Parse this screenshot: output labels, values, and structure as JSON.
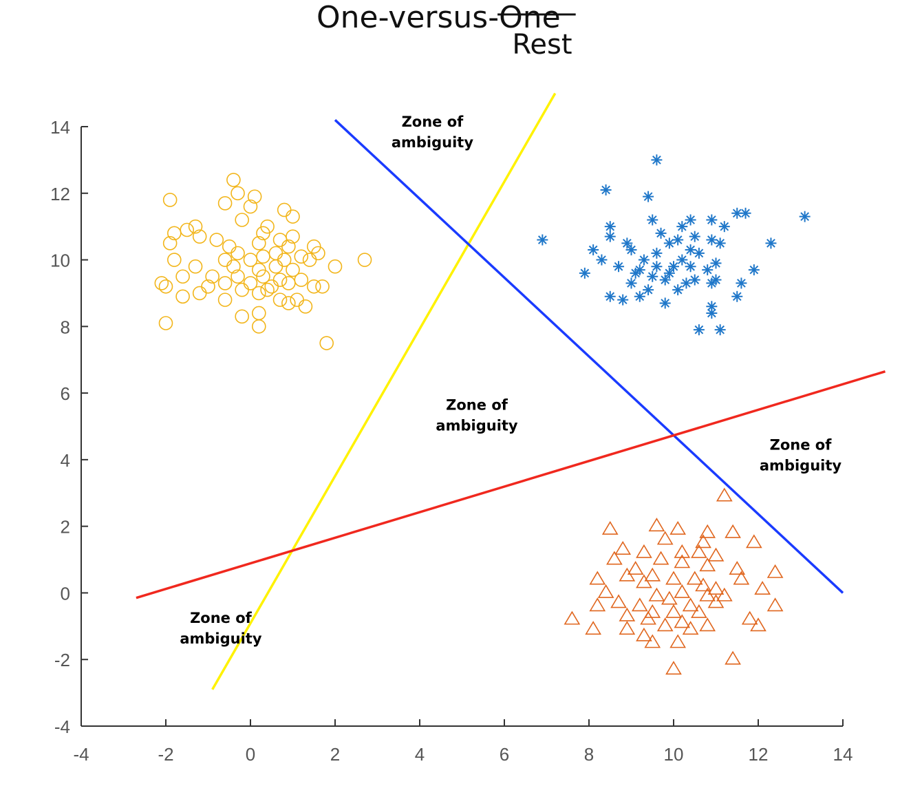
{
  "chart_data": {
    "type": "scatter",
    "title": {
      "prefix": "One-versus-",
      "struck": "One",
      "replacement": "Rest"
    },
    "xlabel": "",
    "ylabel": "",
    "xlim": [
      -4,
      14
    ],
    "ylim": [
      -4,
      14
    ],
    "x_ticks": [
      -4,
      -2,
      0,
      2,
      4,
      6,
      8,
      10,
      12,
      14
    ],
    "y_ticks": [
      -4,
      -2,
      0,
      2,
      4,
      6,
      8,
      10,
      12,
      14
    ],
    "grid": false,
    "colors": {
      "circles": "#F2B51A",
      "stars": "#1F77C9",
      "triangles": "#E0661E",
      "line_yellow": "#FFF200",
      "line_blue": "#1A3BFF",
      "line_red": "#F0281E",
      "axis": "#333333"
    },
    "series": [
      {
        "marker": "circle",
        "color": "#F2B51A",
        "points": [
          [
            -0.4,
            12.4
          ],
          [
            -0.3,
            12.0
          ],
          [
            0.1,
            11.9
          ],
          [
            -1.9,
            11.8
          ],
          [
            -0.6,
            11.7
          ],
          [
            0.0,
            11.6
          ],
          [
            0.8,
            11.5
          ],
          [
            1.0,
            11.3
          ],
          [
            -0.2,
            11.2
          ],
          [
            0.4,
            11.0
          ],
          [
            -1.3,
            11.0
          ],
          [
            -1.5,
            10.9
          ],
          [
            -1.8,
            10.8
          ],
          [
            -1.2,
            10.7
          ],
          [
            0.3,
            10.8
          ],
          [
            0.7,
            10.6
          ],
          [
            1.0,
            10.7
          ],
          [
            -0.8,
            10.6
          ],
          [
            -1.9,
            10.5
          ],
          [
            -0.5,
            10.4
          ],
          [
            0.2,
            10.5
          ],
          [
            0.9,
            10.4
          ],
          [
            1.5,
            10.4
          ],
          [
            -0.3,
            10.2
          ],
          [
            0.3,
            10.1
          ],
          [
            0.6,
            10.2
          ],
          [
            1.2,
            10.1
          ],
          [
            1.6,
            10.2
          ],
          [
            -1.8,
            10.0
          ],
          [
            -0.6,
            10.0
          ],
          [
            0.0,
            10.0
          ],
          [
            0.8,
            10.0
          ],
          [
            1.4,
            10.0
          ],
          [
            2.7,
            10.0
          ],
          [
            -1.3,
            9.8
          ],
          [
            -0.4,
            9.8
          ],
          [
            0.2,
            9.7
          ],
          [
            0.6,
            9.8
          ],
          [
            1.0,
            9.7
          ],
          [
            2.0,
            9.8
          ],
          [
            -1.6,
            9.5
          ],
          [
            -0.9,
            9.5
          ],
          [
            -0.3,
            9.5
          ],
          [
            0.3,
            9.5
          ],
          [
            0.7,
            9.4
          ],
          [
            1.2,
            9.4
          ],
          [
            -2.1,
            9.3
          ],
          [
            -0.6,
            9.3
          ],
          [
            0.0,
            9.3
          ],
          [
            0.5,
            9.2
          ],
          [
            0.9,
            9.3
          ],
          [
            1.5,
            9.2
          ],
          [
            -2.0,
            9.2
          ],
          [
            -1.0,
            9.2
          ],
          [
            -0.2,
            9.1
          ],
          [
            0.4,
            9.1
          ],
          [
            1.7,
            9.2
          ],
          [
            -1.2,
            9.0
          ],
          [
            -1.6,
            8.9
          ],
          [
            -0.6,
            8.8
          ],
          [
            0.2,
            9.0
          ],
          [
            0.7,
            8.8
          ],
          [
            1.1,
            8.8
          ],
          [
            0.9,
            8.7
          ],
          [
            1.3,
            8.6
          ],
          [
            -0.2,
            8.3
          ],
          [
            0.2,
            8.4
          ],
          [
            -2.0,
            8.1
          ],
          [
            0.2,
            8.0
          ],
          [
            1.8,
            7.5
          ]
        ]
      },
      {
        "marker": "star",
        "color": "#1F77C9",
        "points": [
          [
            9.6,
            13.0
          ],
          [
            8.4,
            12.1
          ],
          [
            9.4,
            11.9
          ],
          [
            11.5,
            11.4
          ],
          [
            11.7,
            11.4
          ],
          [
            13.1,
            11.3
          ],
          [
            9.5,
            11.2
          ],
          [
            10.4,
            11.2
          ],
          [
            10.9,
            11.2
          ],
          [
            8.5,
            11.0
          ],
          [
            10.2,
            11.0
          ],
          [
            11.2,
            11.0
          ],
          [
            8.5,
            10.7
          ],
          [
            9.7,
            10.8
          ],
          [
            10.5,
            10.7
          ],
          [
            10.9,
            10.6
          ],
          [
            10.1,
            10.6
          ],
          [
            6.9,
            10.6
          ],
          [
            8.9,
            10.5
          ],
          [
            9.9,
            10.5
          ],
          [
            11.1,
            10.5
          ],
          [
            12.3,
            10.5
          ],
          [
            8.1,
            10.3
          ],
          [
            9.0,
            10.3
          ],
          [
            10.4,
            10.3
          ],
          [
            10.6,
            10.2
          ],
          [
            9.6,
            10.2
          ],
          [
            9.3,
            10.0
          ],
          [
            10.2,
            10.0
          ],
          [
            11.0,
            9.9
          ],
          [
            8.7,
            9.8
          ],
          [
            9.6,
            9.8
          ],
          [
            10.0,
            9.8
          ],
          [
            10.8,
            9.7
          ],
          [
            11.9,
            9.7
          ],
          [
            9.1,
            9.6
          ],
          [
            9.9,
            9.6
          ],
          [
            7.9,
            9.6
          ],
          [
            9.5,
            9.5
          ],
          [
            9.8,
            9.4
          ],
          [
            10.5,
            9.4
          ],
          [
            11.0,
            9.4
          ],
          [
            9.0,
            9.3
          ],
          [
            10.3,
            9.3
          ],
          [
            10.9,
            9.3
          ],
          [
            11.6,
            9.3
          ],
          [
            9.4,
            9.1
          ],
          [
            10.1,
            9.1
          ],
          [
            9.2,
            8.9
          ],
          [
            8.5,
            8.9
          ],
          [
            8.8,
            8.8
          ],
          [
            11.5,
            8.9
          ],
          [
            9.8,
            8.7
          ],
          [
            10.9,
            8.6
          ],
          [
            10.9,
            8.4
          ],
          [
            10.6,
            7.9
          ],
          [
            11.1,
            7.9
          ],
          [
            10.4,
            9.8
          ],
          [
            8.3,
            10.0
          ],
          [
            9.2,
            9.7
          ]
        ]
      },
      {
        "marker": "triangle",
        "color": "#E0661E",
        "points": [
          [
            11.2,
            2.9
          ],
          [
            9.6,
            2.0
          ],
          [
            10.1,
            1.9
          ],
          [
            8.5,
            1.9
          ],
          [
            10.8,
            1.8
          ],
          [
            11.4,
            1.8
          ],
          [
            9.8,
            1.6
          ],
          [
            10.7,
            1.5
          ],
          [
            11.9,
            1.5
          ],
          [
            8.8,
            1.3
          ],
          [
            9.3,
            1.2
          ],
          [
            10.2,
            1.2
          ],
          [
            10.6,
            1.2
          ],
          [
            11.0,
            1.1
          ],
          [
            8.6,
            1.0
          ],
          [
            9.7,
            1.0
          ],
          [
            10.2,
            0.9
          ],
          [
            10.8,
            0.8
          ],
          [
            9.1,
            0.7
          ],
          [
            11.5,
            0.7
          ],
          [
            12.4,
            0.6
          ],
          [
            8.9,
            0.5
          ],
          [
            9.5,
            0.5
          ],
          [
            10.0,
            0.4
          ],
          [
            10.5,
            0.4
          ],
          [
            11.6,
            0.4
          ],
          [
            8.2,
            0.4
          ],
          [
            9.3,
            0.3
          ],
          [
            10.7,
            0.2
          ],
          [
            11.0,
            0.1
          ],
          [
            12.1,
            0.1
          ],
          [
            8.4,
            0.0
          ],
          [
            9.6,
            -0.1
          ],
          [
            10.2,
            0.0
          ],
          [
            10.8,
            -0.1
          ],
          [
            11.2,
            -0.1
          ],
          [
            9.9,
            -0.2
          ],
          [
            8.7,
            -0.3
          ],
          [
            11.0,
            -0.3
          ],
          [
            8.2,
            -0.4
          ],
          [
            9.2,
            -0.4
          ],
          [
            10.4,
            -0.4
          ],
          [
            12.4,
            -0.4
          ],
          [
            9.5,
            -0.6
          ],
          [
            10.0,
            -0.6
          ],
          [
            10.6,
            -0.6
          ],
          [
            8.9,
            -0.7
          ],
          [
            7.6,
            -0.8
          ],
          [
            9.4,
            -0.8
          ],
          [
            11.8,
            -0.8
          ],
          [
            10.2,
            -0.9
          ],
          [
            10.8,
            -1.0
          ],
          [
            8.9,
            -1.1
          ],
          [
            9.8,
            -1.0
          ],
          [
            12.0,
            -1.0
          ],
          [
            8.1,
            -1.1
          ],
          [
            10.4,
            -1.1
          ],
          [
            9.3,
            -1.3
          ],
          [
            9.5,
            -1.5
          ],
          [
            10.1,
            -1.5
          ],
          [
            11.4,
            -2.0
          ],
          [
            10.0,
            -2.3
          ]
        ]
      }
    ],
    "lines": [
      {
        "name": "",
        "color": "#FFF200",
        "from": [
          -0.9,
          -2.9
        ],
        "to": [
          7.2,
          15.0
        ]
      },
      {
        "name": "",
        "color": "#1A3BFF",
        "from": [
          2.0,
          14.2
        ],
        "to": [
          14.0,
          0.0
        ]
      },
      {
        "name": "",
        "color": "#F0281E",
        "from": [
          -2.7,
          -0.15
        ],
        "to": [
          15.0,
          6.65
        ]
      }
    ],
    "annotations": [
      {
        "text": "Zone of\nambiguity",
        "x": 4.3,
        "y": 14.0
      },
      {
        "text": "Zone of\nambiguity",
        "x": 5.35,
        "y": 5.5
      },
      {
        "text": "Zone of\nambiguity",
        "x": 13.0,
        "y": 4.3
      },
      {
        "text": "Zone of\nambiguity",
        "x": -0.7,
        "y": -0.9
      }
    ]
  }
}
